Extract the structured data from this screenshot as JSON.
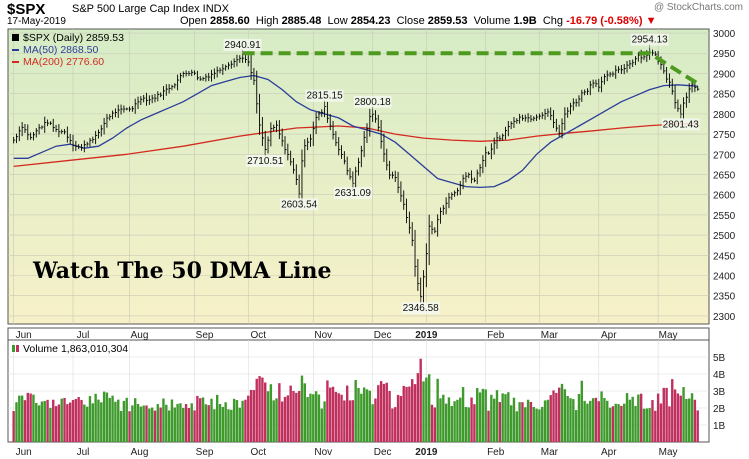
{
  "header": {
    "symbol": "$SPX",
    "name": "S&P 500 Large Cap Index  INDX",
    "date": "17-May-2019",
    "watermark": "@ StockCharts.com",
    "open_label": "Open",
    "open": "2858.60",
    "high_label": "High",
    "high": "2885.48",
    "low_label": "Low",
    "low": "2854.23",
    "close_label": "Close",
    "close": "2859.53",
    "volume_label": "Volume",
    "volume": "1.9B",
    "chg_label": "Chg",
    "chg": "-16.79 (-0.58%)"
  },
  "overlay_text": "Watch The 50 DMA Line",
  "legend": {
    "price": "$SPX (Daily) 2859.53",
    "ma50": "MA(50) 2868.50",
    "ma200": "MA(200) 2776.60",
    "volume": "Volume 1,863,010,304"
  },
  "colors": {
    "price": "#000000",
    "ma50": "#2b3d9a",
    "ma200": "#d42a1e",
    "trend": "#4d9a1f",
    "vol_up": "#3f9a2d",
    "vol_down": "#c0305e",
    "bg_top": "#d6ecc6",
    "bg_bottom": "#f7f1c8"
  },
  "chart_data": {
    "type": "line",
    "title": "$SPX S&P 500 Large Cap Index INDX",
    "ylim": [
      2280,
      3010
    ],
    "y_ticks": [
      2300,
      2350,
      2400,
      2450,
      2500,
      2550,
      2600,
      2650,
      2700,
      2750,
      2800,
      2850,
      2900,
      2950,
      3000
    ],
    "x_month_labels": [
      "Jun",
      "Jul",
      "Aug",
      "Sep",
      "Oct",
      "Nov",
      "Dec",
      "2019",
      "Feb",
      "Mar",
      "Apr",
      "May"
    ],
    "month_start_day": [
      0,
      21,
      41,
      64,
      83,
      106,
      127,
      146,
      167,
      186,
      207,
      228
    ],
    "price_anchors": [
      [
        0,
        2735
      ],
      [
        3,
        2770
      ],
      [
        6,
        2740
      ],
      [
        9,
        2765
      ],
      [
        12,
        2780
      ],
      [
        15,
        2760
      ],
      [
        18,
        2755
      ],
      [
        21,
        2725
      ],
      [
        24,
        2715
      ],
      [
        27,
        2735
      ],
      [
        30,
        2750
      ],
      [
        33,
        2790
      ],
      [
        36,
        2805
      ],
      [
        39,
        2810
      ],
      [
        42,
        2815
      ],
      [
        45,
        2840
      ],
      [
        48,
        2835
      ],
      [
        51,
        2845
      ],
      [
        54,
        2860
      ],
      [
        57,
        2875
      ],
      [
        60,
        2900
      ],
      [
        63,
        2905
      ],
      [
        66,
        2885
      ],
      [
        69,
        2895
      ],
      [
        72,
        2905
      ],
      [
        75,
        2920
      ],
      [
        78,
        2930
      ],
      [
        81,
        2940.91
      ],
      [
        83,
        2925
      ],
      [
        85,
        2880
      ],
      [
        87,
        2770
      ],
      [
        88,
        2740
      ],
      [
        89,
        2710.51
      ],
      [
        91,
        2760
      ],
      [
        93,
        2770
      ],
      [
        95,
        2730
      ],
      [
        97,
        2700
      ],
      [
        99,
        2660
      ],
      [
        100,
        2640
      ],
      [
        101,
        2603.54
      ],
      [
        102,
        2680
      ],
      [
        103,
        2725
      ],
      [
        105,
        2740
      ],
      [
        107,
        2790
      ],
      [
        109,
        2805
      ],
      [
        110,
        2815.15
      ],
      [
        112,
        2770
      ],
      [
        114,
        2730
      ],
      [
        116,
        2700
      ],
      [
        118,
        2660
      ],
      [
        119,
        2645
      ],
      [
        120,
        2631.09
      ],
      [
        122,
        2680
      ],
      [
        124,
        2740
      ],
      [
        126,
        2790
      ],
      [
        127,
        2800.18
      ],
      [
        129,
        2770
      ],
      [
        131,
        2700
      ],
      [
        133,
        2650
      ],
      [
        135,
        2640
      ],
      [
        137,
        2600
      ],
      [
        139,
        2545
      ],
      [
        141,
        2490
      ],
      [
        142,
        2420
      ],
      [
        143,
        2380
      ],
      [
        144,
        2346.58
      ],
      [
        145,
        2400
      ],
      [
        146,
        2455
      ],
      [
        147,
        2520
      ],
      [
        149,
        2510
      ],
      [
        151,
        2560
      ],
      [
        153,
        2580
      ],
      [
        155,
        2600
      ],
      [
        157,
        2610
      ],
      [
        159,
        2640
      ],
      [
        161,
        2650
      ],
      [
        163,
        2635
      ],
      [
        165,
        2670
      ],
      [
        167,
        2700
      ],
      [
        169,
        2710
      ],
      [
        171,
        2740
      ],
      [
        173,
        2745
      ],
      [
        175,
        2770
      ],
      [
        177,
        2780
      ],
      [
        179,
        2795
      ],
      [
        181,
        2790
      ],
      [
        183,
        2790
      ],
      [
        185,
        2795
      ],
      [
        187,
        2800
      ],
      [
        189,
        2805
      ],
      [
        191,
        2780
      ],
      [
        193,
        2750
      ],
      [
        195,
        2800
      ],
      [
        197,
        2820
      ],
      [
        199,
        2830
      ],
      [
        201,
        2850
      ],
      [
        203,
        2860
      ],
      [
        205,
        2880
      ],
      [
        207,
        2870
      ],
      [
        209,
        2890
      ],
      [
        211,
        2895
      ],
      [
        213,
        2905
      ],
      [
        215,
        2910
      ],
      [
        217,
        2920
      ],
      [
        219,
        2930
      ],
      [
        221,
        2945
      ],
      [
        223,
        2940
      ],
      [
        225,
        2954.13
      ],
      [
        227,
        2945
      ],
      [
        229,
        2920
      ],
      [
        231,
        2890
      ],
      [
        232,
        2880
      ],
      [
        233,
        2860
      ],
      [
        234,
        2830
      ],
      [
        235,
        2812
      ],
      [
        236,
        2801.43
      ],
      [
        237,
        2830
      ],
      [
        238,
        2845
      ],
      [
        239,
        2860
      ],
      [
        240,
        2870
      ],
      [
        241,
        2862
      ],
      [
        242,
        2859.53
      ]
    ],
    "ma50_anchors": [
      [
        0,
        2690
      ],
      [
        5,
        2690
      ],
      [
        10,
        2705
      ],
      [
        15,
        2720
      ],
      [
        20,
        2725
      ],
      [
        25,
        2715
      ],
      [
        30,
        2720
      ],
      [
        35,
        2740
      ],
      [
        40,
        2765
      ],
      [
        45,
        2785
      ],
      [
        50,
        2800
      ],
      [
        55,
        2815
      ],
      [
        60,
        2830
      ],
      [
        65,
        2850
      ],
      [
        70,
        2870
      ],
      [
        75,
        2880
      ],
      [
        80,
        2890
      ],
      [
        85,
        2895
      ],
      [
        90,
        2885
      ],
      [
        95,
        2860
      ],
      [
        100,
        2830
      ],
      [
        105,
        2810
      ],
      [
        110,
        2800
      ],
      [
        115,
        2790
      ],
      [
        120,
        2770
      ],
      [
        125,
        2760
      ],
      [
        130,
        2750
      ],
      [
        135,
        2730
      ],
      [
        140,
        2700
      ],
      [
        145,
        2670
      ],
      [
        150,
        2640
      ],
      [
        155,
        2630
      ],
      [
        160,
        2620
      ],
      [
        165,
        2618
      ],
      [
        170,
        2620
      ],
      [
        175,
        2635
      ],
      [
        180,
        2660
      ],
      [
        185,
        2700
      ],
      [
        190,
        2730
      ],
      [
        195,
        2750
      ],
      [
        200,
        2770
      ],
      [
        205,
        2790
      ],
      [
        210,
        2810
      ],
      [
        215,
        2830
      ],
      [
        220,
        2845
      ],
      [
        225,
        2860
      ],
      [
        230,
        2870
      ],
      [
        235,
        2872
      ],
      [
        242,
        2868.5
      ]
    ],
    "ma200_anchors": [
      [
        0,
        2670
      ],
      [
        20,
        2685
      ],
      [
        40,
        2700
      ],
      [
        60,
        2720
      ],
      [
        80,
        2745
      ],
      [
        100,
        2765
      ],
      [
        115,
        2770
      ],
      [
        125,
        2765
      ],
      [
        135,
        2750
      ],
      [
        145,
        2740
      ],
      [
        155,
        2735
      ],
      [
        165,
        2732
      ],
      [
        175,
        2735
      ],
      [
        185,
        2745
      ],
      [
        195,
        2752
      ],
      [
        205,
        2758
      ],
      [
        215,
        2765
      ],
      [
        225,
        2771
      ],
      [
        235,
        2775
      ],
      [
        242,
        2776.6
      ]
    ],
    "annotations": [
      {
        "day": 81,
        "value": 2940.91,
        "label": "2940.91",
        "pos": "above"
      },
      {
        "day": 89,
        "value": 2710.51,
        "label": "2710.51",
        "pos": "below"
      },
      {
        "day": 101,
        "value": 2603.54,
        "label": "2603.54",
        "pos": "below"
      },
      {
        "day": 110,
        "value": 2815.15,
        "label": "2815.15",
        "pos": "above"
      },
      {
        "day": 120,
        "value": 2631.09,
        "label": "2631.09",
        "pos": "below"
      },
      {
        "day": 127,
        "value": 2800.18,
        "label": "2800.18",
        "pos": "above"
      },
      {
        "day": 144,
        "value": 2346.58,
        "label": "2346.58",
        "pos": "below"
      },
      {
        "day": 225,
        "value": 2954.13,
        "label": "2954.13",
        "pos": "above"
      },
      {
        "day": 236,
        "value": 2801.43,
        "label": "2801.43",
        "pos": "below"
      }
    ],
    "trend_line": [
      [
        81,
        2950
      ],
      [
        225,
        2950
      ],
      [
        242,
        2875
      ]
    ],
    "volume": {
      "ylim": [
        0,
        6
      ],
      "y_ticks": [
        1,
        2,
        3,
        4,
        5
      ],
      "y_tick_labels": [
        "1B",
        "2B",
        "3B",
        "4B",
        "5B"
      ],
      "unit": "billion shares",
      "last": 1.86
    }
  }
}
